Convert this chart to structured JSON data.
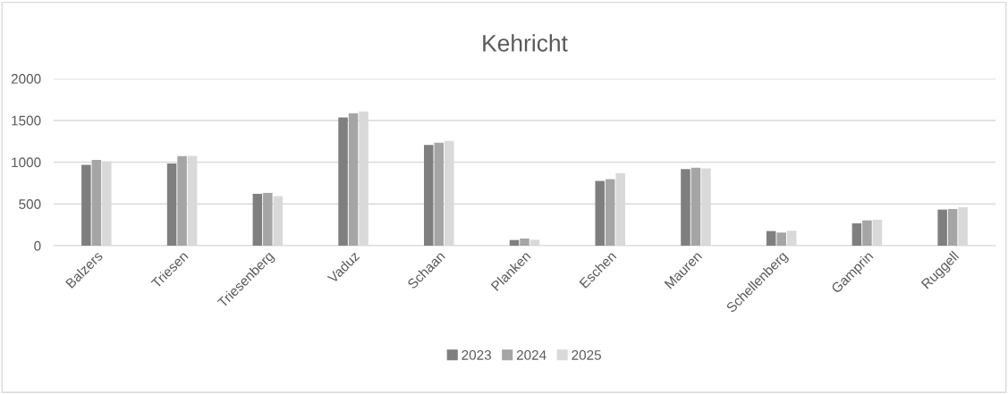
{
  "chart_data": {
    "type": "bar",
    "title": "Kehricht",
    "categories": [
      "Balzers",
      "Triesen",
      "Triesenberg",
      "Vaduz",
      "Schaan",
      "Planken",
      "Eschen",
      "Mauren",
      "Schellenberg",
      "Gamprin",
      "Ruggell"
    ],
    "series": [
      {
        "name": "2023",
        "color": "#7f7f7f",
        "values": [
          967,
          985,
          621,
          1535,
          1207,
          68,
          775,
          918,
          175,
          268,
          432
        ]
      },
      {
        "name": "2024",
        "color": "#a5a5a5",
        "values": [
          1028,
          1071,
          632,
          1585,
          1232,
          86,
          796,
          932,
          157,
          303,
          439
        ]
      },
      {
        "name": "2025",
        "color": "#d9d9d9",
        "values": [
          1010,
          1075,
          593,
          1607,
          1253,
          71,
          868,
          925,
          179,
          311,
          461
        ]
      }
    ],
    "ylim": [
      0,
      2000
    ],
    "yticks": [
      0,
      500,
      1000,
      1500,
      2000
    ],
    "grid": "y",
    "legend": "bottom"
  }
}
